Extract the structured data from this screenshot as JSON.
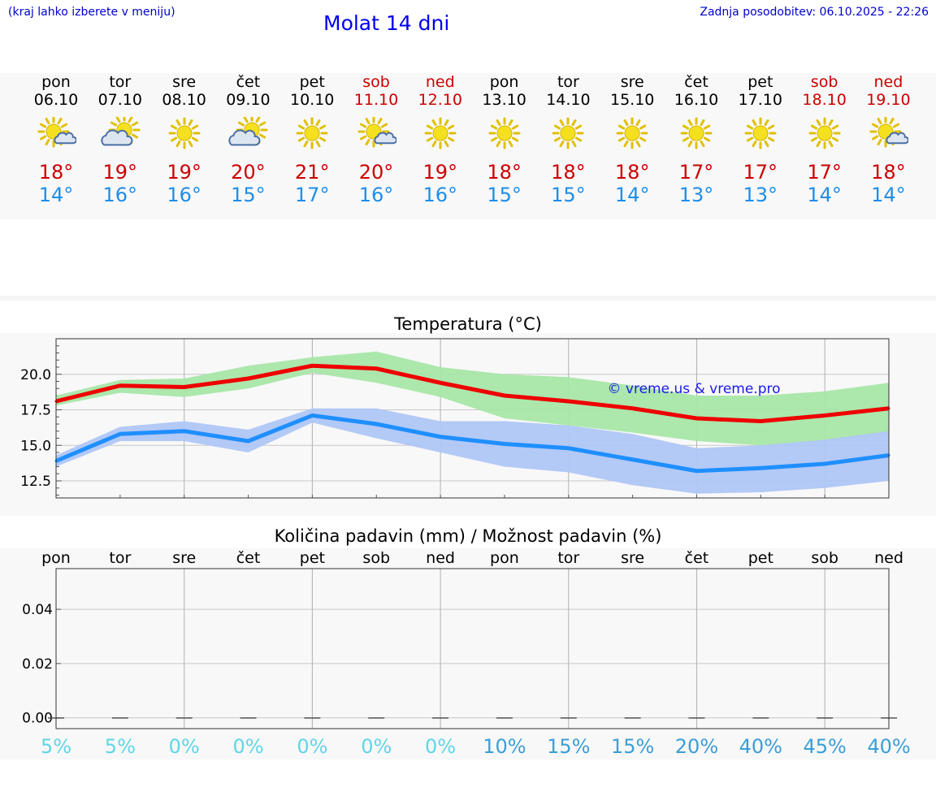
{
  "header": {
    "hint": "(kraj lahko izberete v meniju)",
    "title": "Molat 14 dni",
    "updated": "Zadnja posodobitev: 06.10.2025 - 22:26"
  },
  "days": [
    {
      "name": "pon",
      "date": "06.10",
      "icon": "sun-cloud-icon",
      "tmax": "18°",
      "tmin": "14°",
      "weekend": false
    },
    {
      "name": "tor",
      "date": "07.10",
      "icon": "cloud-sun-icon",
      "tmax": "19°",
      "tmin": "16°",
      "weekend": false
    },
    {
      "name": "sre",
      "date": "08.10",
      "icon": "sun-icon",
      "tmax": "19°",
      "tmin": "16°",
      "weekend": false
    },
    {
      "name": "čet",
      "date": "09.10",
      "icon": "cloud-sun-icon",
      "tmax": "20°",
      "tmin": "15°",
      "weekend": false
    },
    {
      "name": "pet",
      "date": "10.10",
      "icon": "sun-icon",
      "tmax": "21°",
      "tmin": "17°",
      "weekend": false
    },
    {
      "name": "sob",
      "date": "11.10",
      "icon": "sun-cloud-icon",
      "tmax": "20°",
      "tmin": "16°",
      "weekend": true
    },
    {
      "name": "ned",
      "date": "12.10",
      "icon": "sun-icon",
      "tmax": "19°",
      "tmin": "16°",
      "weekend": true
    },
    {
      "name": "pon",
      "date": "13.10",
      "icon": "sun-icon",
      "tmax": "18°",
      "tmin": "15°",
      "weekend": false
    },
    {
      "name": "tor",
      "date": "14.10",
      "icon": "sun-icon",
      "tmax": "18°",
      "tmin": "15°",
      "weekend": false
    },
    {
      "name": "sre",
      "date": "15.10",
      "icon": "sun-icon",
      "tmax": "18°",
      "tmin": "14°",
      "weekend": false
    },
    {
      "name": "čet",
      "date": "16.10",
      "icon": "sun-icon",
      "tmax": "17°",
      "tmin": "13°",
      "weekend": false
    },
    {
      "name": "pet",
      "date": "17.10",
      "icon": "sun-icon",
      "tmax": "17°",
      "tmin": "13°",
      "weekend": false
    },
    {
      "name": "sob",
      "date": "18.10",
      "icon": "sun-icon",
      "tmax": "17°",
      "tmin": "14°",
      "weekend": true
    },
    {
      "name": "ned",
      "date": "19.10",
      "icon": "sun-cloud-icon",
      "tmax": "18°",
      "tmin": "14°",
      "weekend": true
    }
  ],
  "colors": {
    "max_line": "#ee0000",
    "max_band": "#a8e6a8",
    "min_line": "#1f8fff",
    "min_band": "#afc6f5",
    "weekend": "#cc0000",
    "tmin": "#1f8de8",
    "prob_low": "#5fd6e8",
    "prob_high": "#3a9fd6"
  },
  "chart_data": [
    {
      "type": "line",
      "title": "Temperatura (°C)",
      "watermark": "© vreme.us & vreme.pro",
      "ylim": [
        11.3,
        22.5
      ],
      "yticks": [
        12.5,
        15.0,
        17.5,
        20.0
      ],
      "ytick_labels": [
        "12.5",
        "15.0",
        "17.5",
        "20.0"
      ],
      "x": [
        0,
        1,
        2,
        3,
        4,
        5,
        6,
        7,
        8,
        9,
        10,
        11,
        12,
        13
      ],
      "series": [
        {
          "name": "max",
          "values": [
            18.1,
            19.2,
            19.1,
            19.7,
            20.6,
            20.4,
            19.4,
            18.5,
            18.1,
            17.6,
            16.9,
            16.7,
            17.1,
            17.6
          ],
          "band_low": [
            17.8,
            18.7,
            18.4,
            19.0,
            20.1,
            19.4,
            18.4,
            16.9,
            16.4,
            15.9,
            15.3,
            15.0,
            15.3,
            15.9
          ],
          "band_high": [
            18.5,
            19.6,
            19.7,
            20.6,
            21.2,
            21.6,
            20.5,
            20.0,
            19.8,
            19.2,
            18.5,
            18.5,
            18.8,
            19.4
          ]
        },
        {
          "name": "min",
          "values": [
            13.9,
            15.8,
            16.0,
            15.3,
            17.1,
            16.5,
            15.6,
            15.1,
            14.8,
            14.0,
            13.2,
            13.4,
            13.7,
            14.3
          ],
          "band_low": [
            13.5,
            15.3,
            15.3,
            14.5,
            16.6,
            15.5,
            14.5,
            13.5,
            13.1,
            12.2,
            11.6,
            11.7,
            12.0,
            12.5
          ],
          "band_high": [
            14.3,
            16.3,
            16.7,
            16.1,
            17.6,
            17.6,
            16.7,
            16.7,
            16.4,
            15.8,
            14.8,
            15.0,
            15.4,
            16.0
          ]
        }
      ]
    },
    {
      "type": "bar",
      "title": "Količina padavin (mm) / Možnost padavin (%)",
      "categories": [
        "pon",
        "tor",
        "sre",
        "čet",
        "pet",
        "sob",
        "ned",
        "pon",
        "tor",
        "sre",
        "čet",
        "pet",
        "sob",
        "ned"
      ],
      "values": [
        0,
        0,
        0,
        0,
        0,
        0,
        0,
        0,
        0,
        0,
        0,
        0,
        0,
        0
      ],
      "probability": [
        "5%",
        "5%",
        "0%",
        "0%",
        "0%",
        "0%",
        "0%",
        "10%",
        "15%",
        "15%",
        "20%",
        "40%",
        "45%",
        "40%"
      ],
      "probability_high": [
        false,
        false,
        false,
        false,
        false,
        false,
        false,
        true,
        true,
        true,
        true,
        true,
        true,
        true
      ],
      "ylim": [
        -0.004,
        0.055
      ],
      "yticks": [
        0.0,
        0.02,
        0.04
      ],
      "ytick_labels": [
        "0.00",
        "0.02",
        "0.04"
      ]
    }
  ]
}
